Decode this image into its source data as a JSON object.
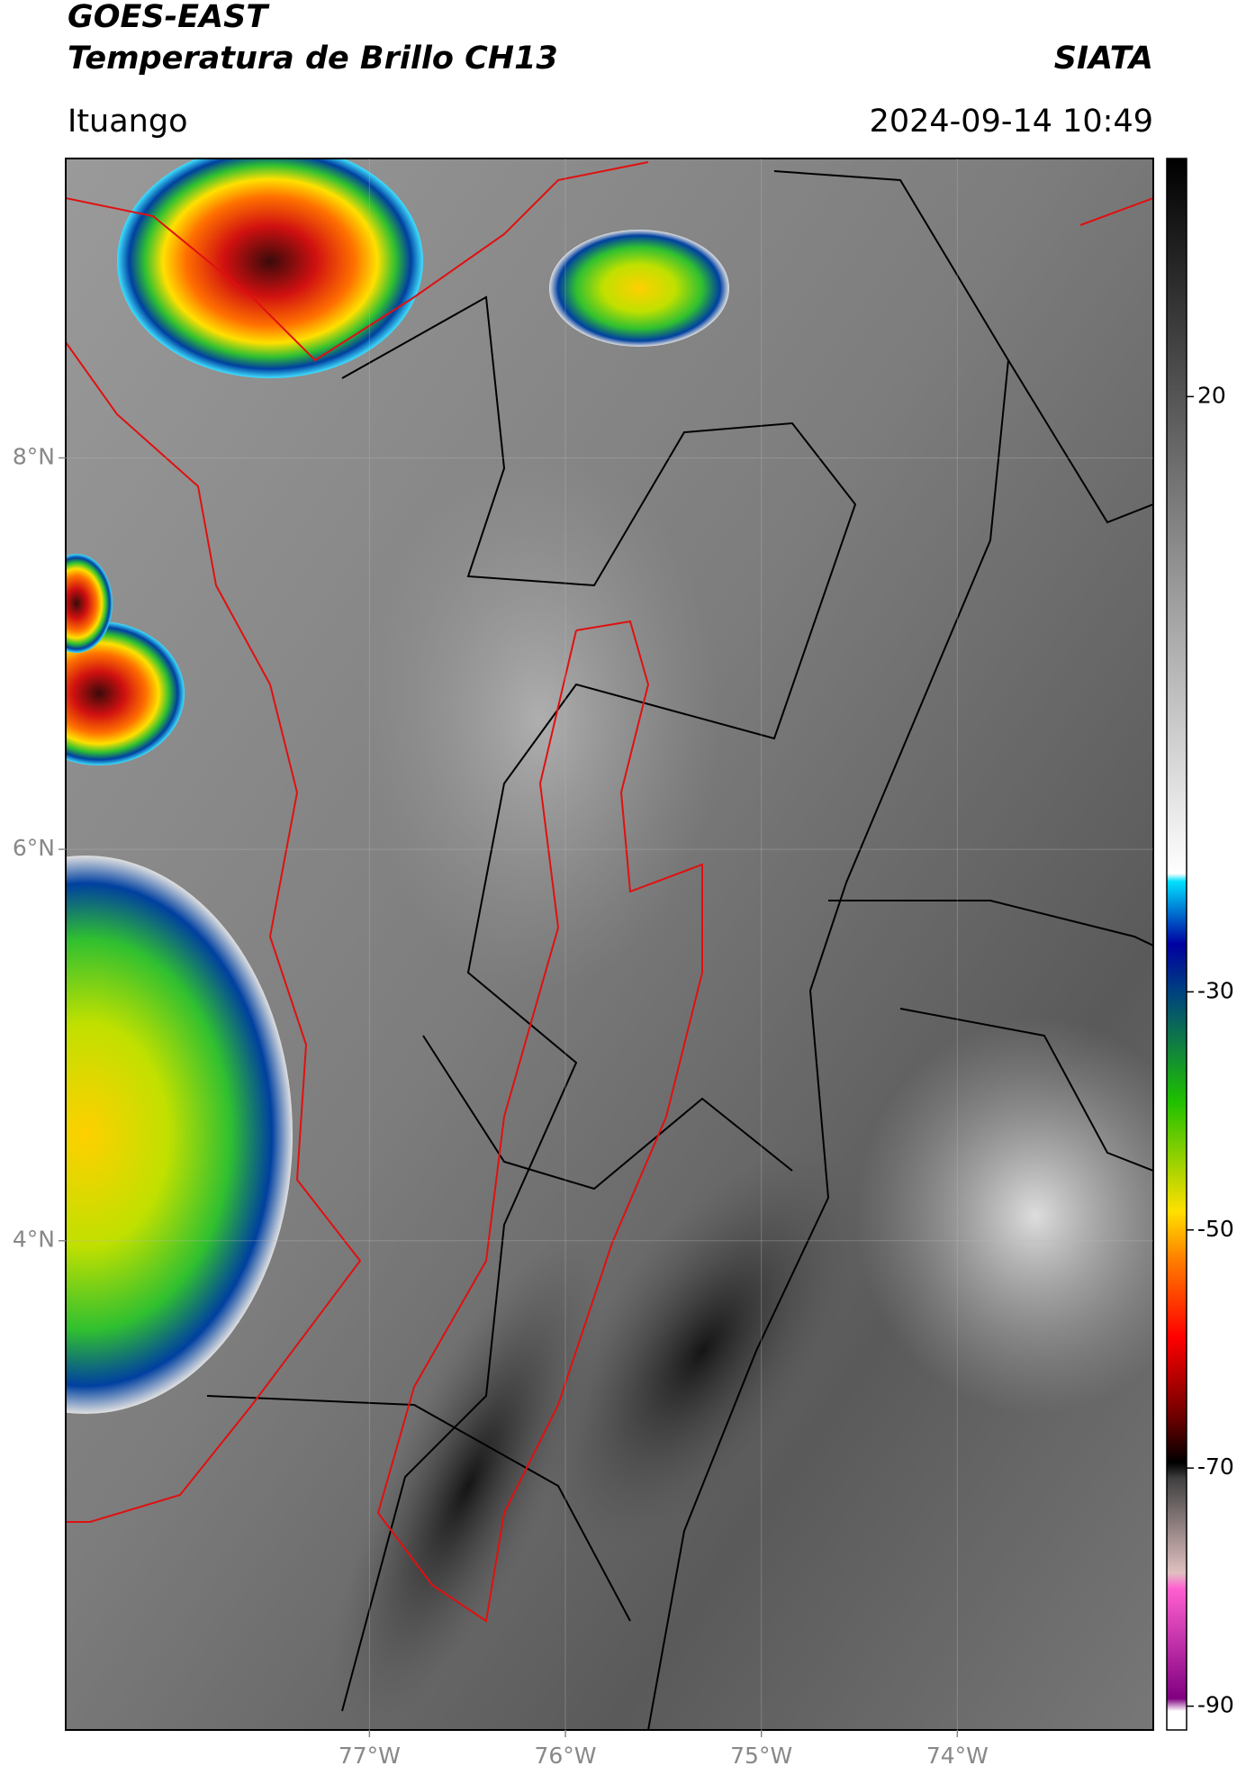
{
  "header": {
    "title": "GOES-EAST",
    "subtitle": "Temperatura de Brillo CH13",
    "source": "SIATA",
    "location": "Ituango",
    "datetime": "2024-09-14 10:49"
  },
  "map": {
    "lon_lim": [
      -78.55,
      -73.0
    ],
    "lat_lim": [
      1.5,
      9.53
    ],
    "lon_ticks": [
      {
        "value": -77,
        "label": "77°W"
      },
      {
        "value": -76,
        "label": "76°W"
      },
      {
        "value": -75,
        "label": "75°W"
      },
      {
        "value": -74,
        "label": "74°W"
      }
    ],
    "lat_ticks": [
      {
        "value": 8,
        "label": "8°N"
      },
      {
        "value": 6,
        "label": "6°N"
      },
      {
        "value": 4,
        "label": "4°N"
      }
    ],
    "grid": true
  },
  "colorbar": {
    "lim": [
      -92,
      40
    ],
    "ticks": [
      20,
      -30,
      -50,
      -70,
      -90
    ]
  }
}
